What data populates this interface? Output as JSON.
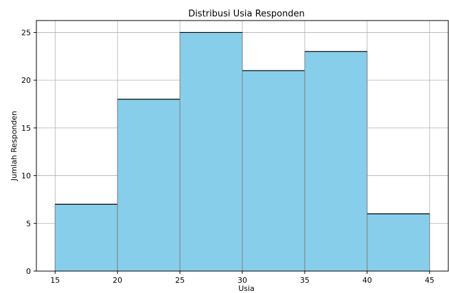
{
  "chart_data": {
    "type": "bar",
    "title": "Distribusi Usia Responden",
    "xlabel": "Usia",
    "ylabel": "Jumlah Responden",
    "bins": [
      {
        "start": 15,
        "end": 20,
        "value": 7
      },
      {
        "start": 20,
        "end": 25,
        "value": 18
      },
      {
        "start": 25,
        "end": 30,
        "value": 25
      },
      {
        "start": 30,
        "end": 35,
        "value": 21
      },
      {
        "start": 35,
        "end": 40,
        "value": 23
      },
      {
        "start": 40,
        "end": 45,
        "value": 6
      }
    ],
    "xlim": [
      13.5,
      46.5
    ],
    "ylim": [
      0,
      26.25
    ],
    "xticks": [
      15,
      20,
      25,
      30,
      35,
      40,
      45
    ],
    "yticks": [
      0,
      5,
      10,
      15,
      20,
      25
    ],
    "grid": true,
    "colors": {
      "bar_fill": "#87ceeb",
      "bar_edge": "#808080",
      "bar_top": "#000000",
      "grid": "#b0b0b0",
      "axis": "#000000"
    }
  }
}
